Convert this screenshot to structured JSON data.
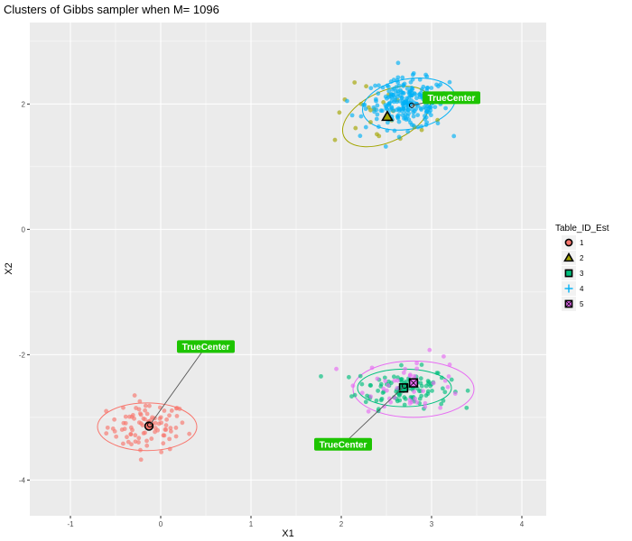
{
  "chart_data": {
    "type": "scatter",
    "title": "Clusters of Gibbs sampler when M= 1096",
    "xlabel": "X1",
    "ylabel": "X2",
    "xlim": [
      -1.45,
      4.27
    ],
    "ylim": [
      -4.57,
      3.3
    ],
    "x_ticks": [
      "-1",
      "0",
      "1",
      "2",
      "3",
      "4"
    ],
    "y_ticks": [
      "-4",
      "-2",
      "0",
      "2"
    ],
    "grid": true,
    "legend": {
      "title": "Table_ID_Est",
      "placement": "right",
      "entries": [
        {
          "label": "1",
          "color": "#F8766D",
          "shape": "circle"
        },
        {
          "label": "2",
          "color": "#A3A500",
          "shape": "triangle"
        },
        {
          "label": "3",
          "color": "#00BF7D",
          "shape": "square"
        },
        {
          "label": "4",
          "color": "#00B0F6",
          "shape": "plus"
        },
        {
          "label": "5",
          "color": "#E76BF3",
          "shape": "square-x"
        }
      ]
    },
    "series": [
      {
        "name": "1",
        "color": "#F8766D",
        "center": [
          -0.15,
          -3.15
        ],
        "spread": [
          0.22,
          0.2
        ],
        "count": 90,
        "ellipse": {
          "cx": -0.15,
          "cy": -3.15,
          "rx": 0.55,
          "ry": 0.38,
          "angle": 0
        }
      },
      {
        "name": "2",
        "color": "#A3A500",
        "center": [
          2.5,
          1.8
        ],
        "spread": [
          0.3,
          0.25
        ],
        "count": 25,
        "ellipse": {
          "cx": 2.5,
          "cy": 1.8,
          "rx": 0.52,
          "ry": 0.4,
          "angle": 25
        }
      },
      {
        "name": "3",
        "color": "#00BF7D",
        "center": [
          2.68,
          -2.53
        ],
        "spread": [
          0.26,
          0.16
        ],
        "count": 110,
        "ellipse": {
          "cx": 2.7,
          "cy": -2.53,
          "rx": 0.52,
          "ry": 0.3,
          "angle": 0
        }
      },
      {
        "name": "4",
        "color": "#00B0F6",
        "center": [
          2.73,
          2.0
        ],
        "spread": [
          0.23,
          0.2
        ],
        "count": 230,
        "ellipse": {
          "cx": 2.75,
          "cy": 2.0,
          "rx": 0.52,
          "ry": 0.4,
          "angle": 10
        }
      },
      {
        "name": "5",
        "color": "#E76BF3",
        "center": [
          2.8,
          -2.45
        ],
        "spread": [
          0.3,
          0.22
        ],
        "count": 45,
        "ellipse": {
          "cx": 2.8,
          "cy": -2.55,
          "rx": 0.67,
          "ry": 0.45,
          "angle": 0
        }
      }
    ],
    "estimated_centers": [
      {
        "cluster": "1",
        "x": -0.13,
        "y": -3.14,
        "shape": "circle",
        "color": "#F8766D"
      },
      {
        "cluster": "2",
        "x": 2.51,
        "y": 1.8,
        "shape": "triangle",
        "color": "#A3A500"
      },
      {
        "cluster": "3",
        "x": 2.69,
        "y": -2.53,
        "shape": "square",
        "color": "#00BF7D"
      },
      {
        "cluster": "4",
        "x": 2.73,
        "y": 2.0,
        "shape": "plus",
        "color": "#00B0F6"
      },
      {
        "cluster": "5",
        "x": 2.8,
        "y": -2.45,
        "shape": "square-x",
        "color": "#E76BF3"
      }
    ],
    "annotations": [
      {
        "text": "TrueCenter",
        "label_x": 0.5,
        "label_y": -1.87,
        "point_x": -0.12,
        "point_y": -3.12
      },
      {
        "text": "TrueCenter",
        "label_x": 3.22,
        "label_y": 2.1,
        "point_x": 2.78,
        "point_y": 1.98
      },
      {
        "text": "TrueCenter",
        "label_x": 2.02,
        "label_y": -3.43,
        "point_x": 2.7,
        "point_y": -2.5
      }
    ]
  }
}
